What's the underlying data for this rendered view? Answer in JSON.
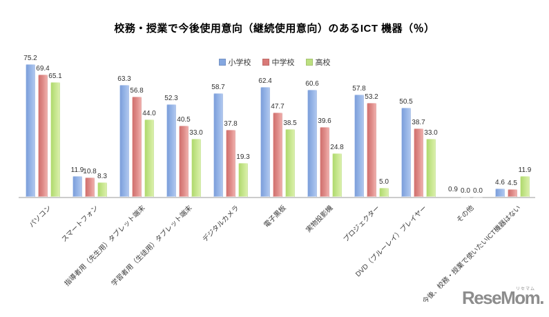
{
  "chart_data": {
    "type": "bar",
    "title": "校務・授業で今後使用意向（継続使用意向）のあるICT 機器（％）",
    "categories": [
      "パソコン",
      "スマートフォン",
      "指導者用（先生用）タブレット端末",
      "学習者用（生徒用）タブレット端末",
      "デジタルカメラ",
      "電子黒板",
      "実物投影機",
      "プロジェクター",
      "DVD（ブルーレイ）プレイヤー",
      "その他",
      "今後、校務・授業で使いたいICT機器はない"
    ],
    "series": [
      {
        "name": "小学校",
        "color": "#84A7E0",
        "values": [
          75.2,
          11.9,
          63.3,
          52.3,
          58.7,
          62.4,
          60.6,
          57.8,
          50.5,
          0.9,
          4.6
        ]
      },
      {
        "name": "中学校",
        "color": "#D97977",
        "values": [
          69.4,
          10.8,
          56.8,
          40.5,
          37.8,
          47.7,
          39.6,
          53.2,
          38.7,
          0.0,
          4.5
        ]
      },
      {
        "name": "高校",
        "color": "#BCE080",
        "values": [
          65.1,
          8.3,
          44.0,
          33.0,
          19.3,
          38.5,
          24.8,
          5.0,
          33.0,
          0.0,
          11.9
        ]
      }
    ],
    "ylim": [
      0,
      80
    ],
    "xlabel": "",
    "ylabel": "",
    "grid": false,
    "legend_position": "top-center",
    "value_labels": "above-bars, one decimal"
  },
  "logo": {
    "text": "ReseMom",
    "dot": ".",
    "ruby": "リセマム"
  }
}
